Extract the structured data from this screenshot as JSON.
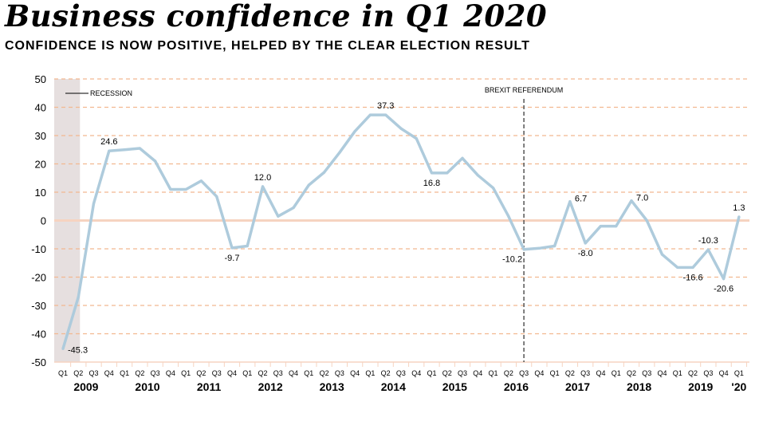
{
  "chart_data": {
    "type": "line",
    "title": "Business  confidence in Q1 2020",
    "subtitle": "CONFIDENCE IS NOW  POSITIVE, HELPED BY THE CLEAR ELECTION  RESULT",
    "ylim": [
      -50,
      50
    ],
    "yticks": [
      50,
      40,
      30,
      20,
      10,
      0,
      -10,
      -20,
      -30,
      -40,
      -50
    ],
    "grid": true,
    "quarter_labels": [
      "Q1",
      "Q2",
      "Q3",
      "Q4",
      "Q1",
      "Q2",
      "Q3",
      "Q4",
      "Q1",
      "Q2",
      "Q3",
      "Q4",
      "Q1",
      "Q2",
      "Q3",
      "Q4",
      "Q1",
      "Q2",
      "Q3",
      "Q4",
      "Q1",
      "Q2",
      "Q3",
      "Q4",
      "Q1",
      "Q2",
      "Q3",
      "Q4",
      "Q1",
      "Q2",
      "Q3",
      "Q4",
      "Q1",
      "Q2",
      "Q3",
      "Q4",
      "Q1",
      "Q2",
      "Q3",
      "Q4",
      "Q1",
      "Q2",
      "Q3",
      "Q4",
      "Q1"
    ],
    "years": [
      "2009",
      "2010",
      "2011",
      "2012",
      "2013",
      "2014",
      "2015",
      "2016",
      "2017",
      "2018",
      "2019",
      "'20"
    ],
    "series": [
      {
        "name": "Business confidence",
        "color": "#aecbdc",
        "values": [
          -45.3,
          -27,
          6,
          24.6,
          25,
          25.5,
          21,
          11,
          11,
          14,
          8.5,
          -9.7,
          -9,
          12.0,
          1.5,
          4.5,
          12.5,
          17,
          24,
          31.5,
          37.3,
          37.3,
          32.5,
          29,
          16.8,
          16.8,
          22,
          16,
          11.5,
          1.5,
          -10.2,
          -9.8,
          -9,
          6.7,
          -8.0,
          -2,
          -2,
          7.0,
          0,
          -12,
          -16.6,
          -16.6,
          -10.3,
          -20.6,
          1.3
        ]
      }
    ],
    "data_labels": [
      {
        "index": 0,
        "text": "-45.3",
        "pos": "right"
      },
      {
        "index": 3,
        "text": "24.6",
        "pos": "above"
      },
      {
        "index": 11,
        "text": "-9.7",
        "pos": "below"
      },
      {
        "index": 13,
        "text": "12.0",
        "pos": "above"
      },
      {
        "index": 21,
        "text": "37.3",
        "pos": "above"
      },
      {
        "index": 24,
        "text": "16.8",
        "pos": "below"
      },
      {
        "index": 30,
        "text": "-10.2",
        "pos": "below-left"
      },
      {
        "index": 33,
        "text": "6.7",
        "pos": "right"
      },
      {
        "index": 34,
        "text": "-8.0",
        "pos": "below"
      },
      {
        "index": 37,
        "text": "7.0",
        "pos": "right"
      },
      {
        "index": 41,
        "text": "-16.6",
        "pos": "below"
      },
      {
        "index": 42,
        "text": "-10.3",
        "pos": "above"
      },
      {
        "index": 43,
        "text": "-20.6",
        "pos": "below"
      },
      {
        "index": 44,
        "text": "1.3",
        "pos": "above"
      }
    ],
    "annotations": {
      "recession": "RECESSION",
      "brexit": "BREXIT REFERENDUM",
      "brexit_index": 30,
      "recession_range": [
        0,
        1
      ]
    },
    "colors": {
      "grid": "#f2b890",
      "zero": "#f6d3c0",
      "recession": "#e6dfdf",
      "brexit": "#555555"
    }
  }
}
